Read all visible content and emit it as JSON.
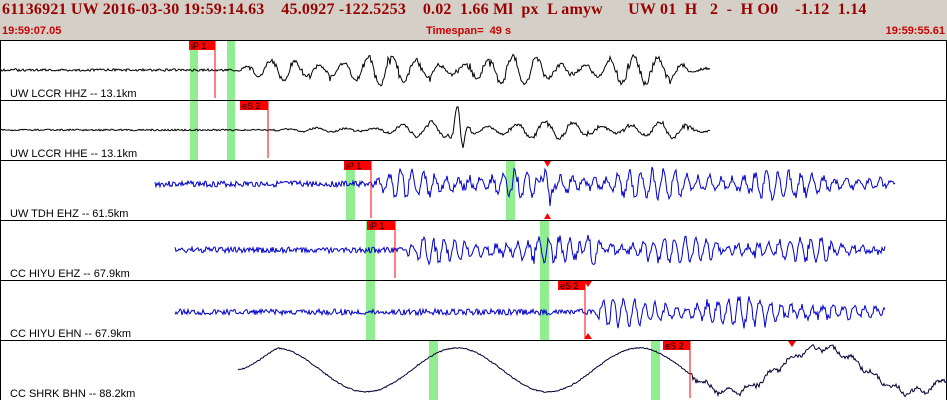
{
  "header": {
    "title": "61136921 UW 2016-03-30 19:59:14.63    45.0927 -122.5253    0.02  1.66 Ml  px  L amyw      UW 01  H   2  -  H O0    -1.12  1.14",
    "start_time": "19:59:07.05",
    "timespan": "Timespan=  49 s",
    "end_time": "19:59:55.61"
  },
  "colors": {
    "header_bg": "#d4d0c8",
    "title": "#990000",
    "subtext": "#cc0000",
    "trace_black": "#000000",
    "trace_blue": "#0000cc",
    "pick_window": "#90ee90",
    "pick_flag": "#ff0000"
  },
  "traces": [
    {
      "label": "UW LCCR HHZ -- 13.1km",
      "pick": "iP 1"
    },
    {
      "label": "UW LCCR HHE -- 13.1km",
      "pick": "eS 2"
    },
    {
      "label": "UW TDH EHZ -- 61.5km",
      "pick": "iP 1"
    },
    {
      "label": "CC HIYU EHZ -- 67.9km",
      "pick": "iP 1"
    },
    {
      "label": "CC HIYU EHN -- 67.9km",
      "pick": "eS 2"
    },
    {
      "label": "CC SHRK BHN -- 88.2km",
      "pick": "eS 2"
    }
  ]
}
